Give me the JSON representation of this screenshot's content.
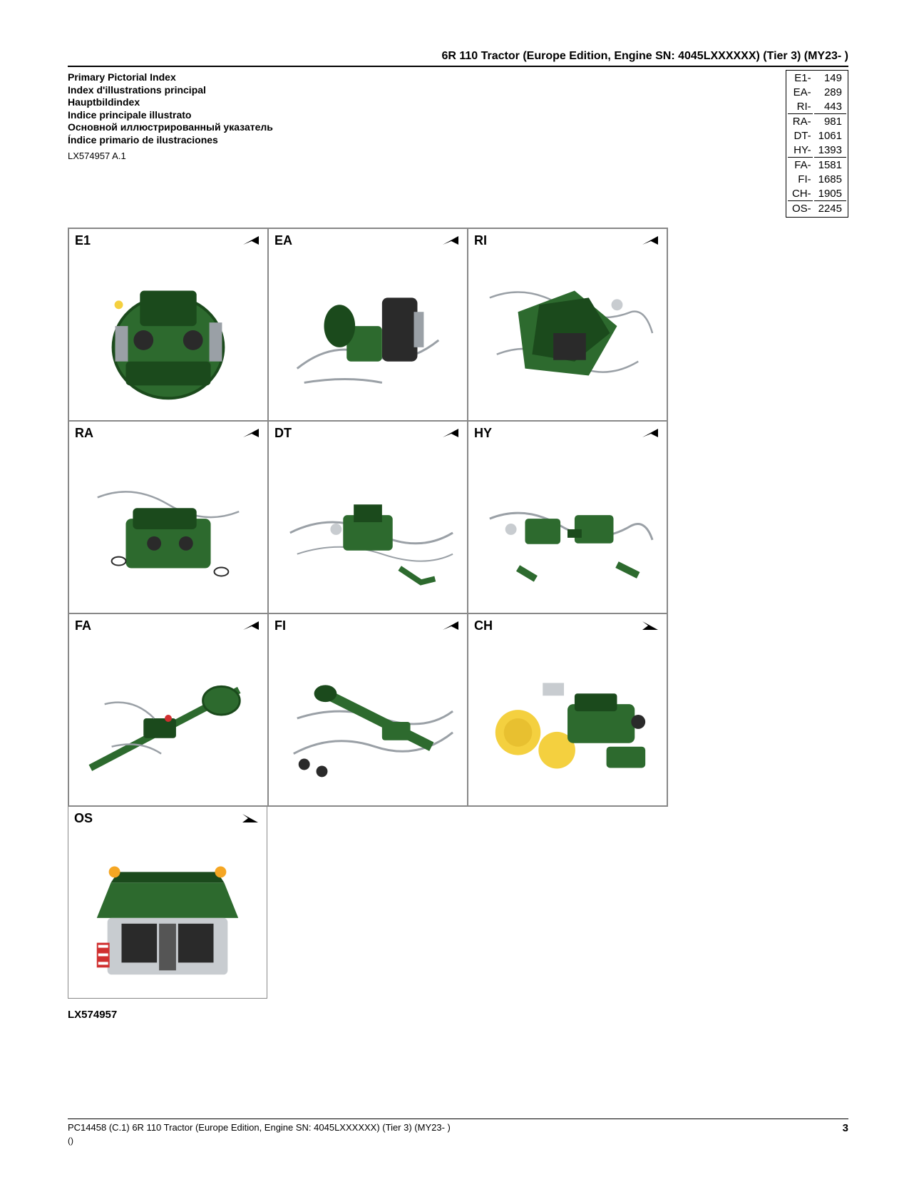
{
  "header": "6R 110 Tractor (Europe Edition, Engine SN: 4045LXXXXXX) (Tier 3) (MY23- )",
  "titles": {
    "en": "Primary Pictorial Index",
    "fr": "Index d'illustrations principal",
    "de": "Hauptbildindex",
    "it": "Indice principale illustrato",
    "ru": "Основной иллюстрированный указатель",
    "es": "Índice primario de ilustraciones"
  },
  "ref_code": "LX574957 A.1",
  "bottom_ref": "LX574957",
  "index_rows": [
    {
      "code": "E1-",
      "page": "149",
      "underlined": false
    },
    {
      "code": "EA-",
      "page": "289",
      "underlined": false
    },
    {
      "code": "RI-",
      "page": "443",
      "underlined": true
    },
    {
      "code": "RA-",
      "page": "981",
      "underlined": false
    },
    {
      "code": "DT-",
      "page": "1061",
      "underlined": false
    },
    {
      "code": "HY-",
      "page": "1393",
      "underlined": true
    },
    {
      "code": "FA-",
      "page": "1581",
      "underlined": false
    },
    {
      "code": "FI-",
      "page": "1685",
      "underlined": false
    },
    {
      "code": "CH-",
      "page": "1905",
      "underlined": true
    },
    {
      "code": "OS-",
      "page": "2245",
      "underlined": false
    }
  ],
  "cells": [
    {
      "label": "E1",
      "arrow": "↗"
    },
    {
      "label": "EA",
      "arrow": "↗"
    },
    {
      "label": "RI",
      "arrow": "↗"
    },
    {
      "label": "RA",
      "arrow": "↗"
    },
    {
      "label": "DT",
      "arrow": "↗"
    },
    {
      "label": "HY",
      "arrow": "↗"
    },
    {
      "label": "FA",
      "arrow": "↗"
    },
    {
      "label": "FI",
      "arrow": "↗"
    },
    {
      "label": "CH",
      "arrow": "↘"
    },
    {
      "label": "OS",
      "arrow": "↘"
    }
  ],
  "colors": {
    "jd_green": "#2d6a2e",
    "jd_dark": "#1b4a1c",
    "jd_yellow": "#f4d03f",
    "metal": "#9aa0a6",
    "metal_light": "#c8ccd0",
    "black": "#2a2a2a"
  },
  "footer": {
    "left": "PC14458    (C.1)    6R 110 Tractor (Europe Edition, Engine SN: 4045LXXXXXX) (Tier 3) (MY23- )",
    "sub": "()",
    "page": "3"
  }
}
